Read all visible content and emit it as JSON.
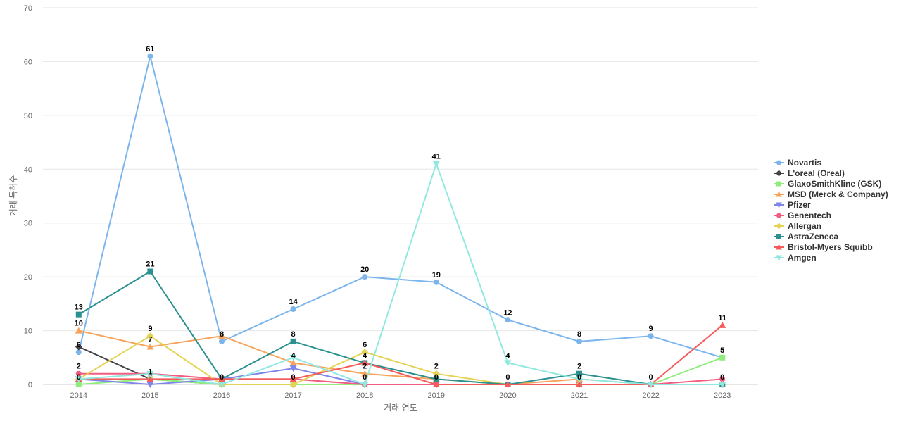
{
  "chart_data": {
    "type": "line",
    "title": "",
    "xlabel": "거래 연도",
    "ylabel": "거래 특허수",
    "ylim": [
      0,
      70
    ],
    "yticks": [
      0,
      10,
      20,
      30,
      40,
      50,
      60,
      70
    ],
    "grid": true,
    "legend_position": "right",
    "categories": [
      "2014",
      "2015",
      "2016",
      "2017",
      "2018",
      "2019",
      "2020",
      "2021",
      "2022",
      "2023"
    ],
    "series": [
      {
        "name": "Novartis",
        "color": "#7cb5ec",
        "marker": "circle",
        "values": [
          6,
          61,
          8,
          14,
          20,
          19,
          12,
          8,
          9,
          5
        ]
      },
      {
        "name": "L'oreal (Oreal)",
        "color": "#434348",
        "marker": "diamond",
        "values": [
          7,
          1,
          0,
          0,
          0,
          0,
          0,
          0,
          0,
          0
        ]
      },
      {
        "name": "GlaxoSmithKline (GSK)",
        "color": "#90ed7d",
        "marker": "square",
        "values": [
          0,
          1,
          0,
          0,
          0,
          0,
          0,
          0,
          0,
          5
        ]
      },
      {
        "name": "MSD (Merck & Company)",
        "color": "#f7a35c",
        "marker": "triangle",
        "values": [
          10,
          7,
          9,
          4,
          2,
          1,
          0,
          1,
          0,
          0
        ]
      },
      {
        "name": "Pfizer",
        "color": "#8085e9",
        "marker": "triangle-down",
        "values": [
          1,
          0,
          1,
          3,
          0,
          0,
          0,
          0,
          0,
          0
        ]
      },
      {
        "name": "Genentech",
        "color": "#f15c80",
        "marker": "circle",
        "values": [
          2,
          2,
          1,
          1,
          0,
          0,
          0,
          0,
          0,
          1
        ]
      },
      {
        "name": "Allergan",
        "color": "#e4d354",
        "marker": "diamond",
        "values": [
          1,
          9,
          0,
          0,
          6,
          2,
          0,
          0,
          0,
          0
        ]
      },
      {
        "name": "AstraZeneca",
        "color": "#2b908f",
        "marker": "square",
        "values": [
          13,
          21,
          1,
          8,
          4,
          1,
          0,
          2,
          0,
          0
        ]
      },
      {
        "name": "Bristol-Myers Squibb",
        "color": "#f45b5b",
        "marker": "triangle",
        "values": [
          1,
          1,
          1,
          1,
          4,
          0,
          0,
          0,
          0,
          11
        ]
      },
      {
        "name": "Amgen",
        "color": "#91e8e1",
        "marker": "triangle-down",
        "values": [
          1,
          2,
          0,
          5,
          0,
          41,
          4,
          1,
          0,
          0
        ]
      }
    ],
    "data_labels": [
      {
        "x": "2014",
        "value": "13",
        "series": "AstraZeneca"
      },
      {
        "x": "2014",
        "value": "10",
        "series": "MSD (Merck & Company)"
      },
      {
        "x": "2014",
        "value": "6",
        "series": "Novartis"
      },
      {
        "x": "2014",
        "value": "2",
        "series": "Genentech"
      },
      {
        "x": "2014",
        "value": "0",
        "series": "GlaxoSmithKline (GSK)"
      },
      {
        "x": "2015",
        "value": "61",
        "series": "Novartis"
      },
      {
        "x": "2015",
        "value": "21",
        "series": "AstraZeneca"
      },
      {
        "x": "2015",
        "value": "9",
        "series": "Allergan"
      },
      {
        "x": "2015",
        "value": "7",
        "series": "MSD (Merck & Company)"
      },
      {
        "x": "2015",
        "value": "1",
        "series": "Bristol-Myers Squibb"
      },
      {
        "x": "2016",
        "value": "8",
        "series": "Novartis"
      },
      {
        "x": "2016",
        "value": "0",
        "series": "GlaxoSmithKline (GSK)"
      },
      {
        "x": "2017",
        "value": "14",
        "series": "Novartis"
      },
      {
        "x": "2017",
        "value": "8",
        "series": "AstraZeneca"
      },
      {
        "x": "2017",
        "value": "4",
        "series": "MSD (Merck & Company)"
      },
      {
        "x": "2017",
        "value": "0",
        "series": "GlaxoSmithKline (GSK)"
      },
      {
        "x": "2018",
        "value": "20",
        "series": "Novartis"
      },
      {
        "x": "2018",
        "value": "6",
        "series": "Allergan"
      },
      {
        "x": "2018",
        "value": "4",
        "series": "AstraZeneca"
      },
      {
        "x": "2018",
        "value": "2",
        "series": "MSD (Merck & Company)"
      },
      {
        "x": "2018",
        "value": "0",
        "series": "GlaxoSmithKline (GSK)"
      },
      {
        "x": "2019",
        "value": "41",
        "series": "Amgen"
      },
      {
        "x": "2019",
        "value": "19",
        "series": "Novartis"
      },
      {
        "x": "2019",
        "value": "2",
        "series": "Allergan"
      },
      {
        "x": "2019",
        "value": "0",
        "series": "GlaxoSmithKline (GSK)"
      },
      {
        "x": "2020",
        "value": "12",
        "series": "Novartis"
      },
      {
        "x": "2020",
        "value": "4",
        "series": "Amgen"
      },
      {
        "x": "2020",
        "value": "0",
        "series": "GlaxoSmithKline (GSK)"
      },
      {
        "x": "2021",
        "value": "8",
        "series": "Novartis"
      },
      {
        "x": "2021",
        "value": "2",
        "series": "AstraZeneca"
      },
      {
        "x": "2021",
        "value": "0",
        "series": "GlaxoSmithKline (GSK)"
      },
      {
        "x": "2022",
        "value": "9",
        "series": "Novartis"
      },
      {
        "x": "2022",
        "value": "0",
        "series": "GlaxoSmithKline (GSK)"
      },
      {
        "x": "2023",
        "value": "11",
        "series": "Bristol-Myers Squibb"
      },
      {
        "x": "2023",
        "value": "5",
        "series": "GlaxoSmithKline (GSK)"
      },
      {
        "x": "2023",
        "value": "0",
        "series": "AstraZeneca"
      }
    ]
  }
}
